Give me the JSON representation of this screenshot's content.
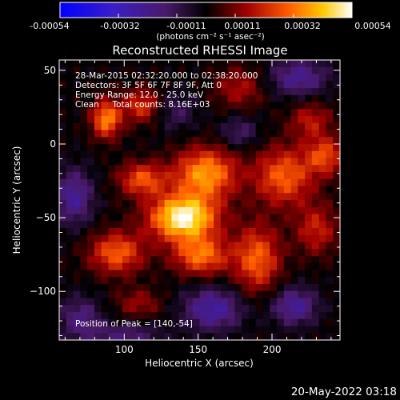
{
  "colorbar": {
    "tick_labels": [
      "-0.00054",
      "-0.00032",
      "-0.00011",
      "0.00011",
      "0.00032",
      "0.00054"
    ],
    "units_label": "(photons cm⁻² s⁻¹ asec⁻²)"
  },
  "chart_data": {
    "type": "heatmap",
    "title": "Reconstructed RHESSI Image",
    "xlabel": "Heliocentric X (arcsec)",
    "ylabel": "Heliocentric Y (arcsec)",
    "xlim": [
      56,
      246
    ],
    "ylim": [
      -133,
      57
    ],
    "x_ticks": [
      100,
      150,
      200
    ],
    "y_ticks": [
      50,
      0,
      -50,
      -100
    ],
    "value_range": [
      -0.00054,
      0.00054
    ],
    "peak": {
      "x": 140,
      "y": -54
    },
    "annotations": [
      "28-Mar-2015 02:32:20.000 to 02:38:20.000",
      "Detectors: 3F 5F 6F 7F 8F 9F, Att 0",
      "Energy Range: 12.0 - 25.0 keV",
      "Clean     Total counts: 8.16E+03"
    ],
    "peak_label": "Position of Peak = [140,-54]",
    "blobs": [
      {
        "x": 140,
        "y": -50,
        "sx": 16,
        "sy": 11,
        "amp": 0.00054
      },
      {
        "x": 155,
        "y": -20,
        "sx": 15,
        "sy": 12,
        "amp": 0.00038
      },
      {
        "x": 112,
        "y": -24,
        "sx": 11,
        "sy": 8,
        "amp": 0.00028
      },
      {
        "x": 88,
        "y": 17,
        "sx": 7,
        "sy": 9,
        "amp": 0.00036
      },
      {
        "x": 112,
        "y": 26,
        "sx": 9,
        "sy": 8,
        "amp": 0.00024
      },
      {
        "x": 95,
        "y": -74,
        "sx": 13,
        "sy": 10,
        "amp": 0.0003
      },
      {
        "x": 152,
        "y": -76,
        "sx": 13,
        "sy": 9,
        "amp": 0.00032
      },
      {
        "x": 190,
        "y": -78,
        "sx": 11,
        "sy": 16,
        "amp": 0.0003
      },
      {
        "x": 208,
        "y": -22,
        "sx": 14,
        "sy": 14,
        "amp": 0.0003
      },
      {
        "x": 236,
        "y": -8,
        "sx": 9,
        "sy": 9,
        "amp": 0.00026
      },
      {
        "x": 230,
        "y": -58,
        "sx": 10,
        "sy": 12,
        "amp": 0.0002
      },
      {
        "x": 178,
        "y": 38,
        "sx": 12,
        "sy": 10,
        "amp": 0.00016
      },
      {
        "x": 110,
        "y": -108,
        "sx": 11,
        "sy": 7,
        "amp": 0.00014
      },
      {
        "x": 226,
        "y": 16,
        "sx": 10,
        "sy": 9,
        "amp": 0.00018
      },
      {
        "x": 215,
        "y": -110,
        "sx": 11,
        "sy": 9,
        "amp": -0.00024
      },
      {
        "x": 160,
        "y": -112,
        "sx": 14,
        "sy": 10,
        "amp": -0.00026
      },
      {
        "x": 218,
        "y": 45,
        "sx": 14,
        "sy": 9,
        "amp": -0.00022
      },
      {
        "x": 66,
        "y": -36,
        "sx": 9,
        "sy": 13,
        "amp": -0.00024
      },
      {
        "x": 70,
        "y": -118,
        "sx": 10,
        "sy": 10,
        "amp": -0.00018
      },
      {
        "x": 135,
        "y": 22,
        "sx": 10,
        "sy": 9,
        "amp": -0.00012
      },
      {
        "x": 178,
        "y": 8,
        "sx": 9,
        "sy": 8,
        "amp": -0.00014
      },
      {
        "x": 100,
        "y": -130,
        "sx": 18,
        "sy": 6,
        "amp": -0.00016
      }
    ]
  },
  "footer": {
    "date": "20-May-2022 03:18"
  }
}
